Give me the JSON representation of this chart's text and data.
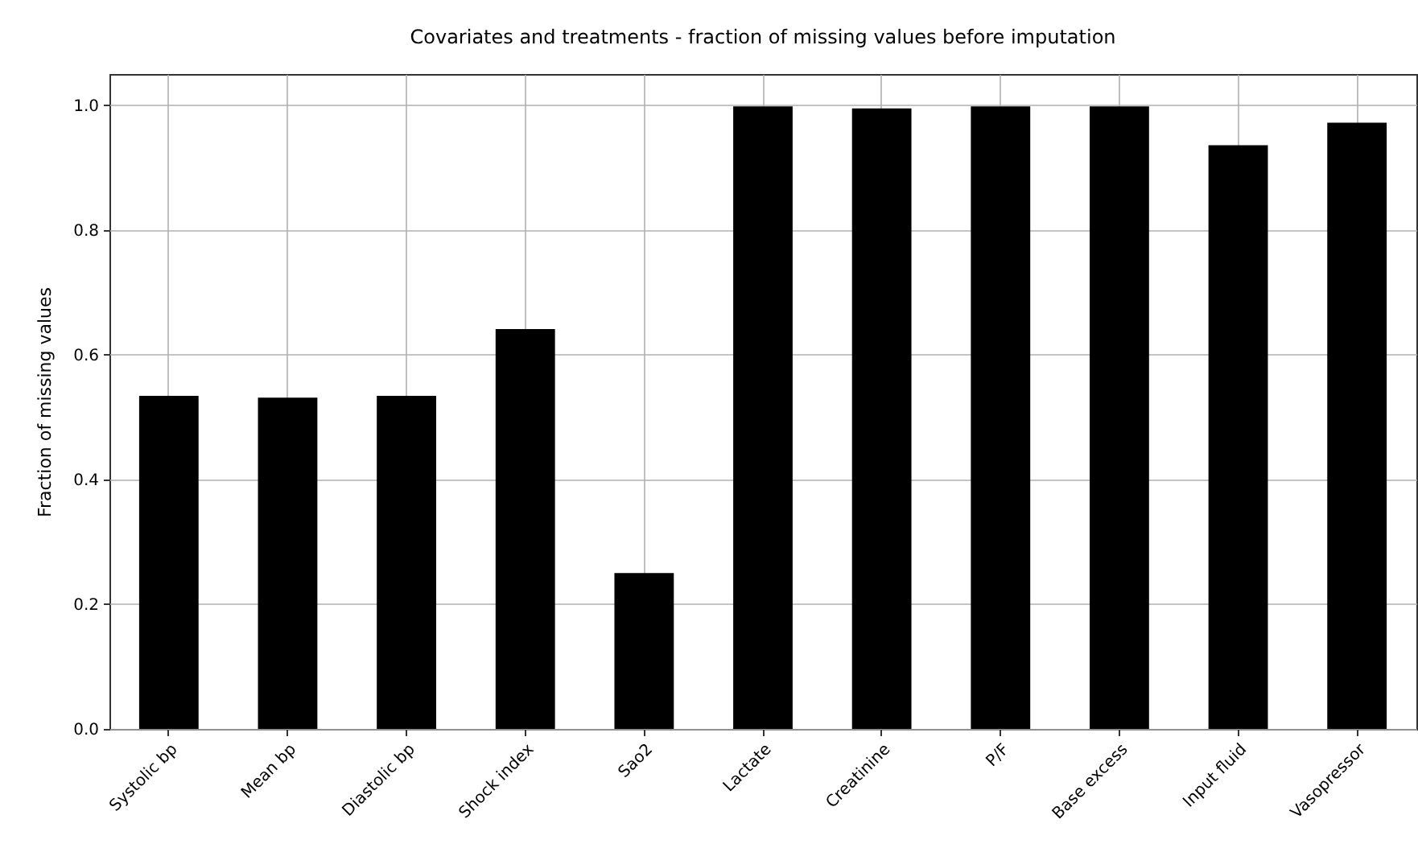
{
  "chart_data": {
    "type": "bar",
    "title": "Covariates and treatments - fraction of missing values before imputation",
    "ylabel": "Fraction of missing values",
    "categories": [
      "Systolic bp",
      "Mean bp",
      "Diastolic bp",
      "Shock index",
      "Sao2",
      "Lactate",
      "Creatinine",
      "P/F",
      "Base excess",
      "Input fluid",
      "Vasopressor"
    ],
    "values": [
      0.534,
      0.531,
      0.534,
      0.641,
      0.25,
      0.998,
      0.995,
      0.998,
      0.998,
      0.936,
      0.972
    ],
    "color": "#000000",
    "ylim": [
      0,
      1.05
    ],
    "yticks": [
      {
        "value": 0,
        "label": "0.0"
      },
      0.2,
      0.4,
      0.6,
      0.8,
      {
        "value": 1,
        "label": "1.0"
      }
    ],
    "grid": true
  }
}
